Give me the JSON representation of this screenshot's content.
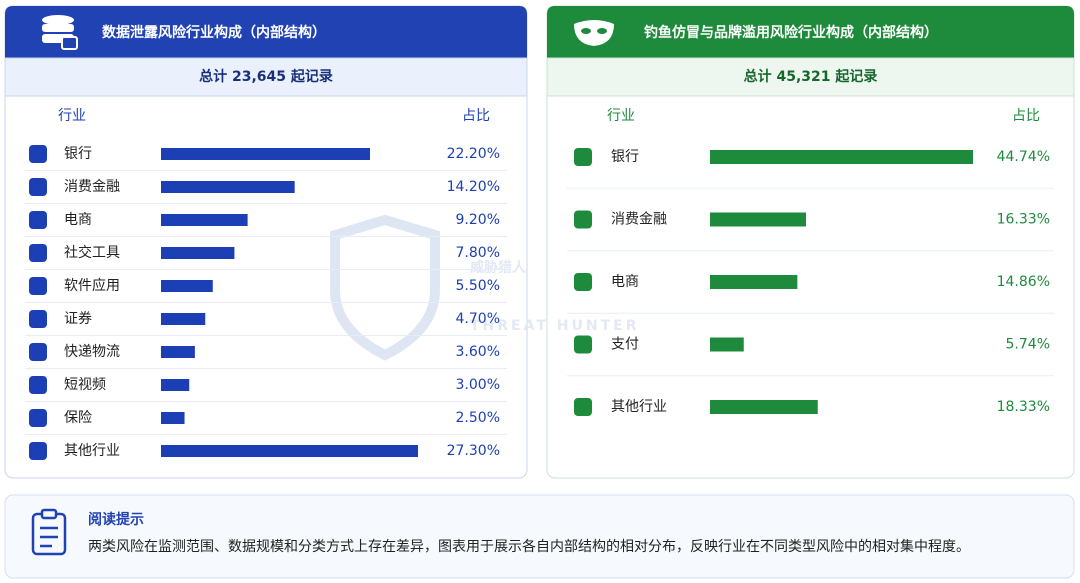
{
  "chart_data": [
    {
      "type": "bar",
      "title": "数据泄露风险行业构成（内部结构）",
      "subtitle": "总计 23,645 起记录",
      "category_header": "行业",
      "value_header": "占比",
      "categories": [
        "银行",
        "消费金融",
        "电商",
        "社交工具",
        "软件应用",
        "证券",
        "快递物流",
        "短视频",
        "保险",
        "其他行业"
      ],
      "values": [
        22.2,
        14.2,
        9.2,
        7.8,
        5.5,
        4.7,
        3.6,
        3.0,
        2.5,
        27.3
      ],
      "value_labels": [
        "22.20%",
        "14.20%",
        "9.20%",
        "7.80%",
        "5.50%",
        "4.70%",
        "3.60%",
        "3.00%",
        "2.50%",
        "27.30%"
      ],
      "color": "#1c3fb5"
    },
    {
      "type": "bar",
      "title": "钓鱼仿冒与品牌滥用风险行业构成（内部结构）",
      "subtitle": "总计 45,321 起记录",
      "category_header": "行业",
      "value_header": "占比",
      "categories": [
        "银行",
        "消费金融",
        "电商",
        "支付",
        "其他行业"
      ],
      "values": [
        44.74,
        16.33,
        14.86,
        5.74,
        18.33
      ],
      "value_labels": [
        "44.74%",
        "16.33%",
        "14.86%",
        "5.74%",
        "18.33%"
      ],
      "color": "#1e8a3c"
    }
  ],
  "watermark": {
    "title": "威胁猎人",
    "subtitle": "THREAT HUNTER"
  },
  "note": {
    "title": "阅读提示",
    "text": "两类风险在监测范围、数据规模和分类方式上存在差异，图表用于展示各自内部结构的相对分布，反映行业在不同类型风险中的相对集中程度。"
  }
}
